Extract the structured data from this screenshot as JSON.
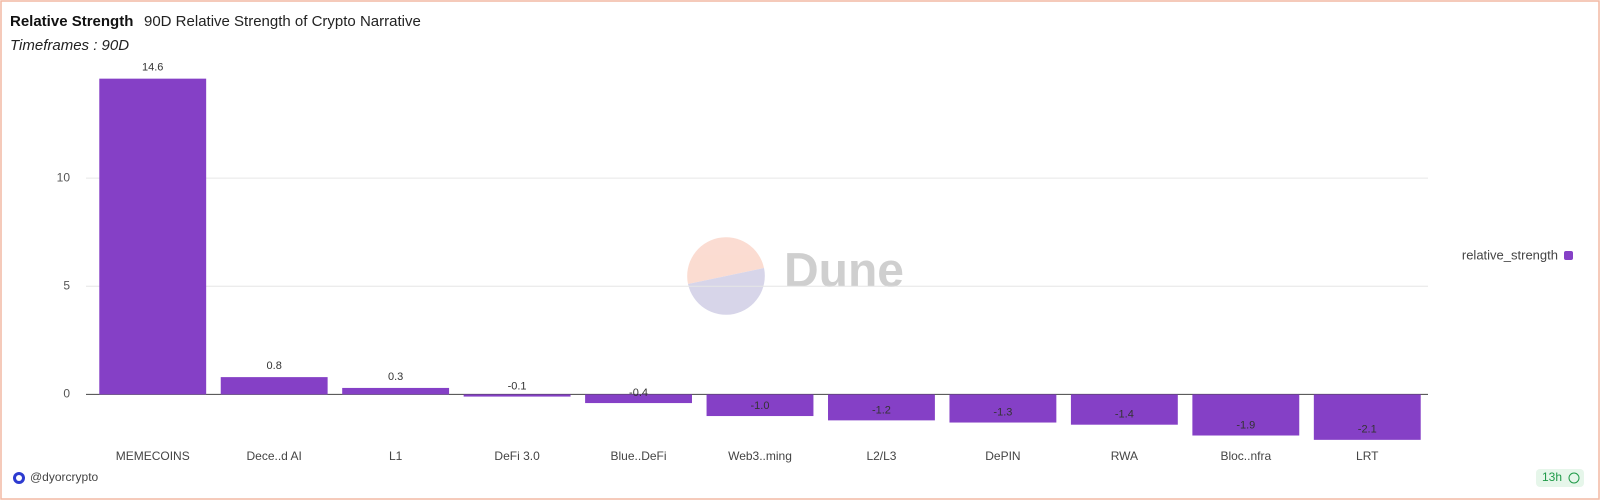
{
  "chart_data": {
    "type": "bar",
    "title": "Relative Strength",
    "subtitle": "90D Relative Strength of Crypto Narrative",
    "note": "Timeframes : 90D",
    "categories": [
      "MEMECOINS",
      "Dece..d AI",
      "L1",
      "DeFi 3.0",
      "Blue..DeFi",
      "Web3..ming",
      "L2/L3",
      "DePIN",
      "RWA",
      "Bloc..nfra",
      "LRT"
    ],
    "series": [
      {
        "name": "relative_strength",
        "color": "#8540c6",
        "values": [
          14.6,
          0.8,
          0.3,
          -0.1,
          -0.4,
          -1.0,
          -1.2,
          -1.3,
          -1.4,
          -1.9,
          -2.1
        ],
        "value_labels": [
          "14.6",
          "0.8",
          "0.3",
          "-0.1",
          "-0.4",
          "-1.0",
          "-1.2",
          "-1.3",
          "-1.4",
          "-1.9",
          "-2.1"
        ]
      }
    ],
    "ylim": [
      -2.2,
      15
    ],
    "yticks": [
      0,
      5,
      10
    ],
    "grid": true,
    "legend": "right"
  },
  "watermark": "Dune",
  "author": "@dyorcrypto",
  "refresh": "13h"
}
